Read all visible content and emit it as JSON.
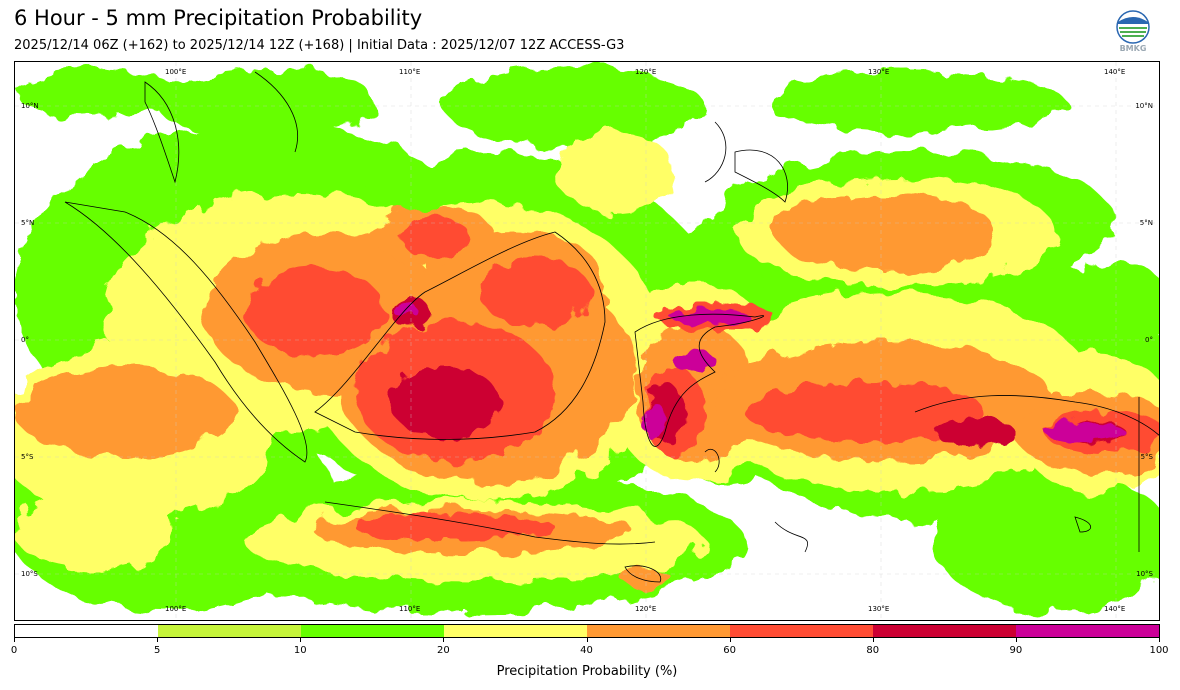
{
  "header": {
    "title": "6 Hour - 5 mm Precipitation Probability",
    "subtitle": "2025/12/14 06Z (+162) to 2025/12/14 12Z (+168) | Initial Data : 2025/12/07 12Z ACCESS-G3",
    "logo_text": "BMKG"
  },
  "map": {
    "lon_labels_top": [
      "100°E",
      "110°E",
      "120°E",
      "130°E",
      "140°E"
    ],
    "lon_labels_bottom": [
      "100°E",
      "110°E",
      "120°E",
      "130°E",
      "140°E"
    ],
    "lat_labels_left": [
      "10°N",
      "5°N",
      "0°",
      "5°S",
      "10°S"
    ],
    "lat_labels_right": [
      "10°N",
      "5°N",
      "0°",
      "5°S",
      "10°S"
    ]
  },
  "colorbar": {
    "title": "Precipitation Probability (%)",
    "ticks": [
      "0",
      "5",
      "10",
      "20",
      "40",
      "60",
      "80",
      "90",
      "100"
    ],
    "colors": [
      "#ffffff",
      "#c6f53a",
      "#66ff00",
      "#ffff66",
      "#ff9933",
      "#ff4c33",
      "#cc0033",
      "#cc0099"
    ]
  }
}
